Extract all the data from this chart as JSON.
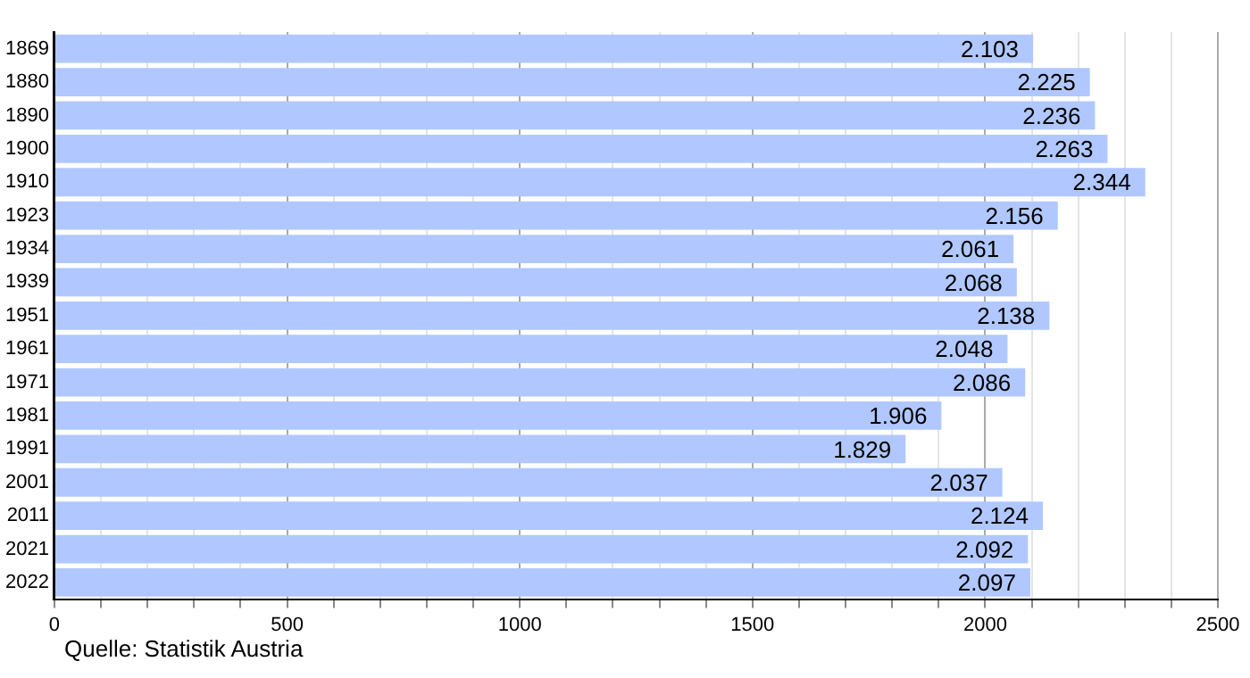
{
  "chart_data": {
    "type": "bar",
    "orientation": "horizontal",
    "categories": [
      "1869",
      "1880",
      "1890",
      "1900",
      "1910",
      "1923",
      "1934",
      "1939",
      "1951",
      "1961",
      "1971",
      "1981",
      "1991",
      "2001",
      "2011",
      "2021",
      "2022"
    ],
    "values": [
      2103,
      2225,
      2236,
      2263,
      2344,
      2156,
      2061,
      2068,
      2138,
      2048,
      2086,
      1906,
      1829,
      2037,
      2124,
      2092,
      2097
    ],
    "value_labels": [
      "2.103",
      "2.225",
      "2.236",
      "2.263",
      "2.344",
      "2.156",
      "2.061",
      "2.068",
      "2.138",
      "2.048",
      "2.086",
      "1.906",
      "1.829",
      "2.037",
      "2.124",
      "2.092",
      "2.097"
    ],
    "color": "#b0c8ff",
    "xlim": [
      0,
      2500
    ],
    "xticks": [
      0,
      {
        "value": 100,
        "label": null
      },
      {
        "value": 200,
        "label": null
      },
      {
        "value": 300,
        "label": null
      },
      {
        "value": 400,
        "label": null
      },
      500,
      {
        "value": 600,
        "label": null
      },
      {
        "value": 700,
        "label": null
      },
      {
        "value": 800,
        "label": null
      },
      {
        "value": 900,
        "label": null
      },
      1000,
      {
        "value": 1100,
        "label": null
      },
      {
        "value": 1200,
        "label": null
      },
      {
        "value": 1300,
        "label": null
      },
      {
        "value": 1400,
        "label": null
      },
      1500,
      {
        "value": 1600,
        "label": null
      },
      {
        "value": 1700,
        "label": null
      },
      {
        "value": 1800,
        "label": null
      },
      {
        "value": 1900,
        "label": null
      },
      2000,
      {
        "value": 2100,
        "label": null
      },
      {
        "value": 2200,
        "label": null
      },
      {
        "value": 2300,
        "label": null
      },
      {
        "value": 2400,
        "label": null
      },
      2500
    ],
    "grid": "x",
    "annotations": [
      "Quelle: Statistik Austria"
    ]
  }
}
